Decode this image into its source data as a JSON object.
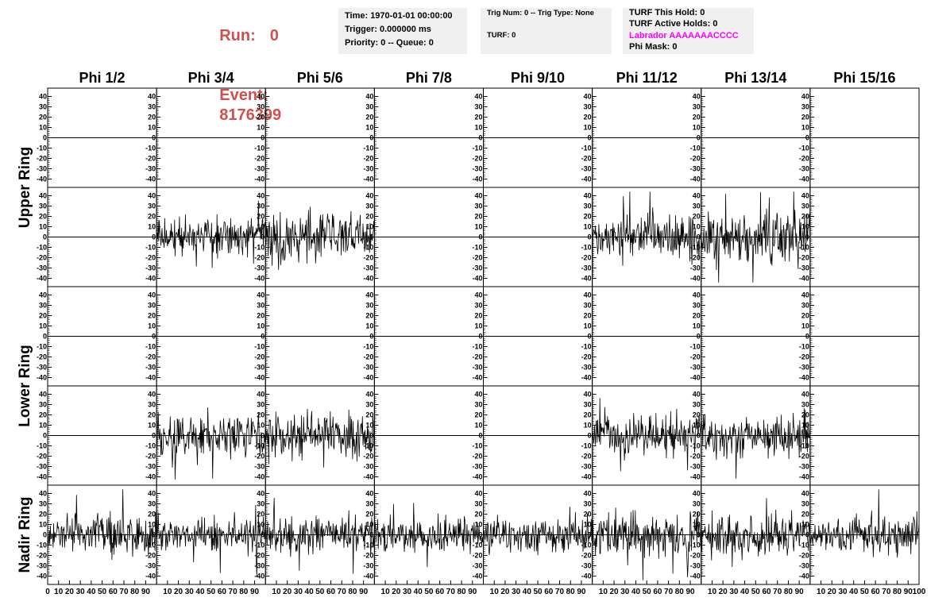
{
  "header": {
    "run_label": "Run:",
    "run_value": "0",
    "event_label": "Event:",
    "event_value": "8176399",
    "highlight_color": "#d05050",
    "time": "Time: 1970-01-01 00:00:00",
    "trigger": "Trigger: 0.000000 ms",
    "priority_queue": "Priority: 0 -- Queue: 0",
    "trig_num_type": "Trig Num: 0 -- Trig Type: None",
    "turf": "TURF: 0",
    "turf_this_hold": "TURF This Hold: 0",
    "turf_active_holds": "TURF Active Holds: 0",
    "labrador": "Labrador AAAAAAACCCC",
    "labrador_color": "#ff00ff",
    "phi_mask": "Phi Mask: 0"
  },
  "chart_data": {
    "type": "line",
    "columns": [
      "Phi 1/2",
      "Phi 3/4",
      "Phi 5/6",
      "Phi 7/8",
      "Phi 9/10",
      "Phi 11/12",
      "Phi 13/14",
      "Phi 15/16"
    ],
    "ring_labels": [
      "Upper Ring",
      "Lower Ring",
      "Nadir Ring"
    ],
    "ylim": [
      -45,
      45
    ],
    "y_ticks": [
      -40,
      -30,
      -20,
      -10,
      0,
      10,
      20,
      30,
      40
    ],
    "xlim": [
      0,
      100
    ],
    "x_ticks": [
      0,
      10,
      20,
      30,
      40,
      50,
      60,
      70,
      80,
      90,
      100
    ],
    "grid": false,
    "panels": [
      {
        "row": 0,
        "col": 0,
        "amp": 0,
        "seed": 1
      },
      {
        "row": 0,
        "col": 1,
        "amp": 0,
        "seed": 2
      },
      {
        "row": 0,
        "col": 2,
        "amp": 0,
        "seed": 3
      },
      {
        "row": 0,
        "col": 3,
        "amp": 0,
        "seed": 4
      },
      {
        "row": 0,
        "col": 4,
        "amp": 0,
        "seed": 5
      },
      {
        "row": 0,
        "col": 5,
        "amp": 0,
        "seed": 6
      },
      {
        "row": 0,
        "col": 6,
        "amp": 0,
        "seed": 7
      },
      {
        "row": 0,
        "col": 7,
        "amp": 0,
        "seed": 8
      },
      {
        "row": 1,
        "col": 0,
        "amp": 0,
        "seed": 11
      },
      {
        "row": 1,
        "col": 1,
        "amp": 11,
        "seed": 12
      },
      {
        "row": 1,
        "col": 2,
        "amp": 15,
        "seed": 13
      },
      {
        "row": 1,
        "col": 3,
        "amp": 0,
        "seed": 14
      },
      {
        "row": 1,
        "col": 4,
        "amp": 0,
        "seed": 15
      },
      {
        "row": 1,
        "col": 5,
        "amp": 13,
        "seed": 16
      },
      {
        "row": 1,
        "col": 6,
        "amp": 14,
        "seed": 17
      },
      {
        "row": 1,
        "col": 7,
        "amp": 0,
        "seed": 18
      },
      {
        "row": 2,
        "col": 0,
        "amp": 0,
        "seed": 21
      },
      {
        "row": 2,
        "col": 1,
        "amp": 0,
        "seed": 22
      },
      {
        "row": 2,
        "col": 2,
        "amp": 0,
        "seed": 23
      },
      {
        "row": 2,
        "col": 3,
        "amp": 0,
        "seed": 24
      },
      {
        "row": 2,
        "col": 4,
        "amp": 0,
        "seed": 25
      },
      {
        "row": 2,
        "col": 5,
        "amp": 0,
        "seed": 26
      },
      {
        "row": 2,
        "col": 6,
        "amp": 0,
        "seed": 27
      },
      {
        "row": 2,
        "col": 7,
        "amp": 0,
        "seed": 28
      },
      {
        "row": 3,
        "col": 0,
        "amp": 0,
        "seed": 31
      },
      {
        "row": 3,
        "col": 1,
        "amp": 12,
        "seed": 32
      },
      {
        "row": 3,
        "col": 2,
        "amp": 13,
        "seed": 33
      },
      {
        "row": 3,
        "col": 3,
        "amp": 0,
        "seed": 34
      },
      {
        "row": 3,
        "col": 4,
        "amp": 0,
        "seed": 35
      },
      {
        "row": 3,
        "col": 5,
        "amp": 13,
        "seed": 36
      },
      {
        "row": 3,
        "col": 6,
        "amp": 12,
        "seed": 37
      },
      {
        "row": 3,
        "col": 7,
        "amp": 0,
        "seed": 38
      },
      {
        "row": 4,
        "col": 0,
        "amp": 12,
        "seed": 41
      },
      {
        "row": 4,
        "col": 1,
        "amp": 10,
        "seed": 42
      },
      {
        "row": 4,
        "col": 2,
        "amp": 11,
        "seed": 43
      },
      {
        "row": 4,
        "col": 3,
        "amp": 10,
        "seed": 44
      },
      {
        "row": 4,
        "col": 4,
        "amp": 10,
        "seed": 45
      },
      {
        "row": 4,
        "col": 5,
        "amp": 13,
        "seed": 46
      },
      {
        "row": 4,
        "col": 6,
        "amp": 12,
        "seed": 47
      },
      {
        "row": 4,
        "col": 7,
        "amp": 12,
        "seed": 48
      }
    ]
  }
}
